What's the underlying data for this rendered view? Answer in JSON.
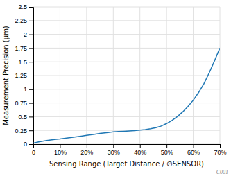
{
  "chart_data": {
    "type": "line",
    "x_label": "Sensing Range (Target Distance / ∅SENSOR)",
    "y_label": "Measurement Precision (µm)",
    "annotations": [
      "C001"
    ],
    "x": [
      0.0,
      0.02,
      0.05,
      0.08,
      0.1,
      0.13,
      0.15,
      0.18,
      0.2,
      0.23,
      0.25,
      0.28,
      0.3,
      0.32,
      0.34,
      0.36,
      0.38,
      0.4,
      0.42,
      0.44,
      0.46,
      0.48,
      0.5,
      0.52,
      0.54,
      0.56,
      0.58,
      0.6,
      0.62,
      0.64,
      0.66,
      0.68,
      0.7
    ],
    "values": [
      0.02,
      0.04,
      0.065,
      0.085,
      0.095,
      0.115,
      0.125,
      0.145,
      0.16,
      0.18,
      0.195,
      0.21,
      0.225,
      0.23,
      0.235,
      0.24,
      0.245,
      0.255,
      0.265,
      0.28,
      0.3,
      0.33,
      0.375,
      0.43,
      0.5,
      0.585,
      0.685,
      0.8,
      0.94,
      1.1,
      1.3,
      1.52,
      1.75
    ],
    "xlim": [
      0,
      0.7
    ],
    "ylim": [
      0,
      2.5
    ],
    "xticks": [
      0,
      {
        "value": 0.1,
        "label": "10%"
      },
      {
        "value": 0.2,
        "label": "20%"
      },
      {
        "value": 0.3,
        "label": "30%"
      },
      {
        "value": 0.4,
        "label": "40%"
      },
      {
        "value": 0.5,
        "label": "50%"
      },
      {
        "value": 0.6,
        "label": "60%"
      },
      {
        "value": 0.7,
        "label": "70%"
      }
    ],
    "yticks": [
      0,
      0.25,
      0.5,
      0.75,
      1,
      1.25,
      1.5,
      1.75,
      2,
      2.25,
      2.5
    ],
    "grid": true
  }
}
